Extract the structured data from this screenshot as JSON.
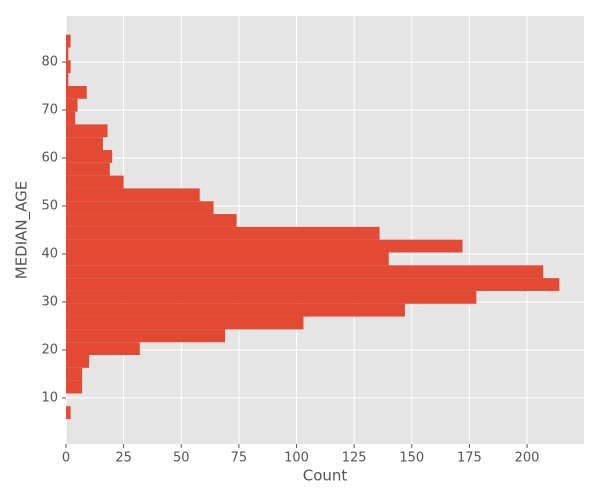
{
  "chart_data": {
    "type": "histogram",
    "orientation": "horizontal",
    "xlabel": "Count",
    "ylabel": "MEDIAN_AGE",
    "bins": [
      5.6,
      8.27,
      10.94,
      13.61,
      16.28,
      18.95,
      21.62,
      24.29,
      26.96,
      29.63,
      32.3,
      34.97,
      37.64,
      40.31,
      42.98,
      45.65,
      48.32,
      50.99,
      53.66,
      56.33,
      59.0,
      61.67,
      64.34,
      67.01,
      69.68,
      72.35,
      75.02,
      77.69,
      80.36,
      83.03,
      85.7
    ],
    "values": [
      2,
      0,
      7,
      7,
      10,
      32,
      69,
      103,
      147,
      178,
      214,
      207,
      140,
      172,
      136,
      74,
      64,
      58,
      25,
      19,
      20,
      16,
      18,
      4,
      5,
      9,
      1,
      2,
      1,
      2
    ],
    "color": "#e24a33",
    "xlim": [
      0,
      224.7
    ],
    "xticks": [
      0,
      25,
      50,
      75,
      100,
      125,
      150,
      175,
      200
    ],
    "ylim": [
      0.4,
      89.6
    ],
    "yticks": [
      10,
      20,
      30,
      40,
      50,
      60,
      70,
      80
    ],
    "grid": true
  }
}
